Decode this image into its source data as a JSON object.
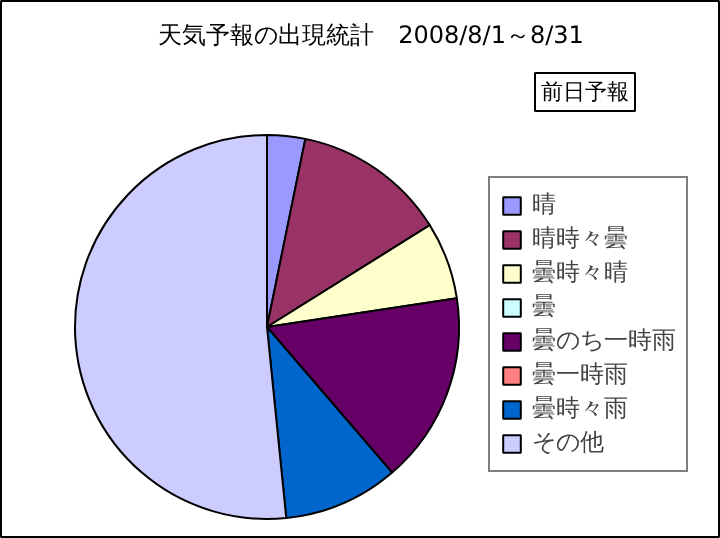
{
  "chart_data": {
    "type": "pie",
    "title": "天気予報の出現統計　2008/8/1～8/31",
    "subtitle": "前日予報",
    "categories": [
      "晴",
      "晴時々曇",
      "曇時々晴",
      "曇",
      "曇のち一時雨",
      "曇一時雨",
      "曇時々雨",
      "その他"
    ],
    "values": [
      3.2,
      12.9,
      6.5,
      0,
      16.1,
      0,
      9.7,
      51.6
    ],
    "colors": [
      "#9999ff",
      "#993366",
      "#ffffcc",
      "#ccffff",
      "#660066",
      "#ff8080",
      "#0066cc",
      "#ccccff"
    ],
    "legend": "right"
  }
}
